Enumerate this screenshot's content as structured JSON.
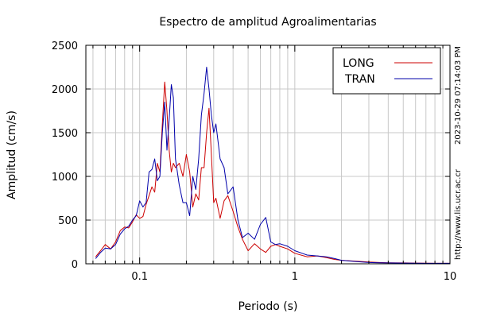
{
  "chart_data": {
    "type": "line",
    "title": "Espectro de amplitud Agroalimentarias",
    "xlabel": "Periodo (s)",
    "ylabel": "Amplitud (cm/s)",
    "x_scale": "log",
    "xlim": [
      0.045,
      10
    ],
    "ylim": [
      0,
      2500
    ],
    "x_ticks": [
      0.1,
      1,
      10
    ],
    "x_tick_labels": [
      "0.1",
      "1",
      "10"
    ],
    "y_ticks": [
      0,
      500,
      1000,
      1500,
      2000,
      2500
    ],
    "y_tick_labels": [
      "0",
      "500",
      "1000",
      "1500",
      "2000",
      "2500"
    ],
    "grid": true,
    "legend_position": "top-right",
    "timestamp": "2023-10-29 07:14:03 PM",
    "source_url": "http://www.lis.ucr.ac.cr",
    "series": [
      {
        "name": "LONG",
        "color": "#cc0000",
        "x": [
          0.052,
          0.056,
          0.06,
          0.065,
          0.07,
          0.075,
          0.08,
          0.085,
          0.09,
          0.095,
          0.1,
          0.105,
          0.11,
          0.115,
          0.12,
          0.125,
          0.13,
          0.135,
          0.14,
          0.145,
          0.15,
          0.155,
          0.16,
          0.165,
          0.17,
          0.18,
          0.19,
          0.2,
          0.21,
          0.22,
          0.23,
          0.24,
          0.25,
          0.26,
          0.27,
          0.28,
          0.29,
          0.3,
          0.31,
          0.33,
          0.35,
          0.37,
          0.4,
          0.43,
          0.46,
          0.5,
          0.55,
          0.6,
          0.65,
          0.7,
          0.75,
          0.8,
          0.9,
          1.0,
          1.2,
          1.4,
          1.6,
          1.8,
          2.0,
          2.5,
          3.0,
          3.5,
          4.0,
          5.0,
          6.0,
          7.0,
          8.0,
          9.0,
          10.0
        ],
        "y": [
          80,
          150,
          220,
          170,
          250,
          380,
          420,
          410,
          480,
          560,
          520,
          540,
          680,
          780,
          880,
          820,
          1150,
          1050,
          1600,
          2080,
          1750,
          1300,
          1050,
          1150,
          1100,
          1150,
          1000,
          1250,
          1050,
          650,
          800,
          730,
          1100,
          1100,
          1500,
          1780,
          1250,
          700,
          750,
          520,
          720,
          780,
          600,
          420,
          280,
          150,
          230,
          170,
          130,
          200,
          220,
          200,
          170,
          120,
          80,
          90,
          70,
          50,
          40,
          30,
          20,
          15,
          12,
          10,
          8,
          6,
          5,
          5,
          5
        ]
      },
      {
        "name": "TRAN",
        "color": "#0000aa",
        "x": [
          0.052,
          0.056,
          0.06,
          0.065,
          0.07,
          0.075,
          0.08,
          0.085,
          0.09,
          0.095,
          0.1,
          0.105,
          0.11,
          0.115,
          0.12,
          0.125,
          0.13,
          0.135,
          0.14,
          0.145,
          0.15,
          0.155,
          0.16,
          0.165,
          0.17,
          0.18,
          0.19,
          0.2,
          0.21,
          0.22,
          0.23,
          0.24,
          0.25,
          0.26,
          0.27,
          0.28,
          0.29,
          0.3,
          0.31,
          0.33,
          0.35,
          0.37,
          0.4,
          0.43,
          0.46,
          0.5,
          0.55,
          0.6,
          0.65,
          0.7,
          0.75,
          0.8,
          0.9,
          1.0,
          1.2,
          1.4,
          1.6,
          1.8,
          2.0,
          2.5,
          3.0,
          3.5,
          4.0,
          5.0,
          6.0,
          7.0,
          8.0,
          9.0,
          10.0
        ],
        "y": [
          60,
          130,
          180,
          170,
          220,
          340,
          400,
          430,
          500,
          550,
          720,
          650,
          700,
          1050,
          1080,
          1200,
          950,
          1000,
          1500,
          1850,
          1300,
          1650,
          2050,
          1900,
          1200,
          900,
          700,
          700,
          550,
          1000,
          850,
          1200,
          1700,
          1950,
          2250,
          2000,
          1700,
          1500,
          1600,
          1200,
          1100,
          800,
          880,
          500,
          300,
          350,
          280,
          450,
          530,
          250,
          220,
          230,
          200,
          150,
          100,
          90,
          80,
          60,
          40,
          25,
          15,
          12,
          10,
          8,
          6,
          5,
          5,
          5,
          5
        ]
      }
    ]
  }
}
